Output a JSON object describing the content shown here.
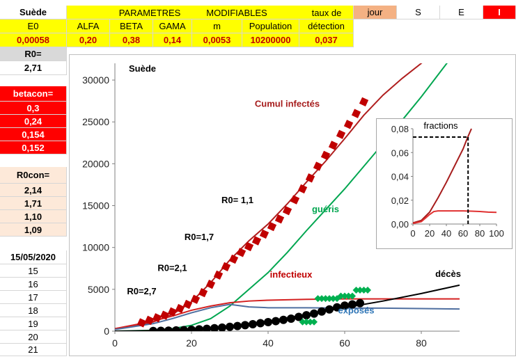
{
  "sheet": {
    "country": "Suède",
    "params_header_1": "PARAMETRES",
    "params_header_2": "MODIFIABLES",
    "taux_header_1": "taux de",
    "taux_header_2": "détection",
    "col_jour": "jour",
    "col_S": "S",
    "col_E": "E",
    "col_I": "I",
    "param_labels": [
      "E0",
      "ALFA",
      "BETA",
      "GAMA",
      "m",
      "Population"
    ],
    "param_values": [
      "0,00058",
      "0,20",
      "0,38",
      "0,14",
      "0,0053",
      "10200000",
      "0,037"
    ],
    "r0_label": "R0=",
    "r0_value": "2,71",
    "betacon_label": "betacon=",
    "betacon_values": [
      "0,3",
      "0,24",
      "0,154",
      "0,152"
    ],
    "r0con_label": "R0con=",
    "r0con_values": [
      "2,14",
      "1,71",
      "1,10",
      "1,09"
    ],
    "date": "15/05/2020",
    "day_rows": [
      "15",
      "16",
      "17",
      "18",
      "19",
      "20",
      "21"
    ]
  },
  "chart_data": [
    {
      "type": "line",
      "title": "Suède",
      "xlabel": "",
      "ylabel": "",
      "xlim": [
        0,
        90
      ],
      "ylim": [
        0,
        32000
      ],
      "x_ticks": [
        0,
        20,
        40,
        60,
        80
      ],
      "y_ticks": [
        0,
        5000,
        10000,
        15000,
        20000,
        25000,
        30000
      ],
      "grid": false,
      "series": [
        {
          "name": "Cumul infectés",
          "color": "#b01e1e",
          "x": [
            0,
            5,
            10,
            15,
            20,
            25,
            30,
            35,
            40,
            45,
            50,
            55,
            60,
            65,
            70,
            75,
            80,
            85,
            90
          ],
          "y": [
            300,
            600,
            1100,
            2000,
            3500,
            5800,
            8500,
            10800,
            12800,
            15200,
            17800,
            20300,
            23000,
            25800,
            28200,
            30200,
            32000,
            34000,
            36000
          ]
        },
        {
          "name": "guéris",
          "color": "#00a650",
          "x": [
            0,
            10,
            15,
            20,
            25,
            30,
            35,
            40,
            45,
            50,
            55,
            60,
            65,
            70,
            75,
            80,
            85,
            90
          ],
          "y": [
            0,
            100,
            300,
            700,
            1500,
            3000,
            5000,
            7000,
            9400,
            12000,
            14500,
            17000,
            19700,
            22400,
            25200,
            28000,
            31000,
            34000
          ]
        },
        {
          "name": "infectieux",
          "color": "#d42020",
          "x": [
            0,
            10,
            15,
            20,
            25,
            30,
            35,
            40,
            50,
            60,
            70,
            80,
            90
          ],
          "y": [
            300,
            1200,
            1800,
            2500,
            3000,
            3400,
            3600,
            3700,
            3800,
            3850,
            3850,
            3850,
            3850
          ]
        },
        {
          "name": "exposés",
          "color": "#4f6fa0",
          "x": [
            0,
            10,
            15,
            20,
            25,
            30,
            35,
            40,
            50,
            60,
            70,
            80,
            90
          ],
          "y": [
            200,
            900,
            1500,
            2200,
            2800,
            3200,
            2900,
            2800,
            2800,
            2750,
            2750,
            2700,
            2650
          ]
        },
        {
          "name": "décès",
          "color": "#000000",
          "x": [
            0,
            10,
            20,
            30,
            40,
            50,
            60,
            70,
            80,
            90
          ],
          "y": [
            0,
            60,
            200,
            600,
            1200,
            2000,
            2800,
            3600,
            4500,
            5500
          ]
        }
      ],
      "markers": [
        {
          "style": "red-square",
          "color": "#c00000",
          "x": [
            7,
            9,
            11,
            13,
            15,
            17,
            19,
            21,
            23,
            25,
            27,
            29,
            31,
            33,
            35,
            37,
            39,
            41,
            43,
            45,
            47,
            49,
            51,
            53,
            55,
            57,
            59,
            61,
            63,
            65
          ],
          "y": [
            1000,
            1300,
            1600,
            1900,
            2300,
            2700,
            3200,
            3800,
            4600,
            5600,
            6700,
            7700,
            8600,
            9400,
            10100,
            10800,
            11600,
            12500,
            13400,
            14400,
            15700,
            17000,
            18300,
            19700,
            21000,
            22200,
            23500,
            24700,
            26000,
            27400
          ]
        },
        {
          "style": "black-dot",
          "color": "#000000",
          "x": [
            10,
            12,
            14,
            16,
            18,
            20,
            22,
            24,
            26,
            28,
            30,
            32,
            34,
            36,
            38,
            40,
            42,
            44,
            46,
            48,
            50,
            52,
            54,
            56,
            58,
            60,
            62,
            64
          ],
          "y": [
            20,
            40,
            60,
            90,
            120,
            170,
            220,
            280,
            350,
            430,
            520,
            610,
            720,
            830,
            960,
            1080,
            1200,
            1350,
            1500,
            1700,
            1900,
            2100,
            2350,
            2600,
            2850,
            3050,
            3200,
            3350
          ]
        },
        {
          "style": "green-diamond",
          "color": "#00b050",
          "x": [
            49,
            50,
            51,
            52,
            53,
            54,
            55,
            56,
            57,
            58,
            59,
            60,
            61,
            62,
            63,
            64,
            65,
            66
          ],
          "y": [
            1100,
            1100,
            1100,
            1100,
            3900,
            3900,
            3900,
            3900,
            3900,
            3900,
            4200,
            4200,
            4200,
            4200,
            4900,
            4900,
            4900,
            4900
          ]
        }
      ],
      "annotations": [
        {
          "text": "Cumul infectés",
          "x": 45,
          "y": 26800,
          "color": "#a61c1c"
        },
        {
          "text": "guéris",
          "x": 55,
          "y": 14200,
          "color": "#00a650"
        },
        {
          "text": "infectieux",
          "x": 46,
          "y": 6400,
          "color": "#c00000"
        },
        {
          "text": "exposés",
          "x": 63,
          "y": 2100,
          "color": "#2e75b6"
        },
        {
          "text": "décès",
          "x": 87,
          "y": 6500,
          "color": "#000000"
        },
        {
          "text": "R0=  1,1",
          "x": 32,
          "y": 15300,
          "color": "#000000"
        },
        {
          "text": "R0=1,7",
          "x": 22,
          "y": 10900,
          "color": "#000000"
        },
        {
          "text": "R0=2,1",
          "x": 15,
          "y": 7200,
          "color": "#000000"
        },
        {
          "text": "R0=2,7",
          "x": 7,
          "y": 4400,
          "color": "#000000"
        }
      ]
    },
    {
      "type": "line",
      "title": "fractions",
      "xlim": [
        0,
        100
      ],
      "ylim": [
        0,
        0.08
      ],
      "x_ticks": [
        0,
        20,
        40,
        60,
        80,
        100
      ],
      "y_ticks": [
        0.0,
        0.02,
        0.04,
        0.06,
        0.08
      ],
      "y_tick_labels": [
        "0,00",
        "0,02",
        "0,04",
        "0,06",
        "0,08"
      ],
      "series": [
        {
          "name": "",
          "color": "#a61c1c",
          "x": [
            0,
            10,
            20,
            30,
            40,
            50,
            60,
            65,
            70
          ],
          "y": [
            0.001,
            0.003,
            0.01,
            0.022,
            0.035,
            0.049,
            0.063,
            0.072,
            0.08
          ]
        },
        {
          "name": "",
          "color": "#e03030",
          "x": [
            0,
            10,
            15,
            20,
            25,
            30,
            40,
            50,
            60,
            70,
            80,
            90,
            100
          ],
          "y": [
            0.0005,
            0.002,
            0.005,
            0.008,
            0.0105,
            0.011,
            0.011,
            0.011,
            0.011,
            0.0108,
            0.0105,
            0.01,
            0.0098
          ]
        }
      ],
      "reference_point": {
        "x": 66,
        "y": 0.073
      }
    }
  ]
}
